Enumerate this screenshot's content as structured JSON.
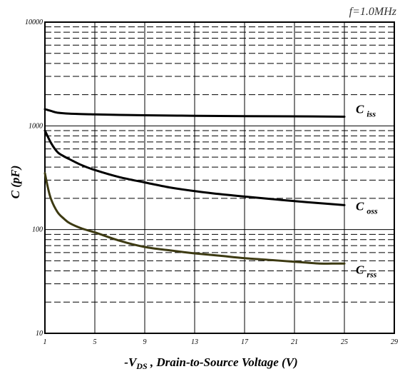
{
  "chart_data": {
    "type": "line",
    "title": "",
    "annotation": "f=1.0MHz",
    "xlabel": {
      "prefix": "-V",
      "sub": "DS",
      "suffix": " , Drain-to-Source Voltage (V)"
    },
    "ylabel": "C (pF)",
    "xlim": [
      1,
      29
    ],
    "ylim": [
      10,
      10000
    ],
    "yscale": "log",
    "xticks": [
      1,
      5,
      9,
      13,
      17,
      21,
      25,
      29
    ],
    "xtick_labels": [
      "1",
      "5",
      "9",
      "13",
      "17",
      "21",
      "25",
      "29"
    ],
    "yticks": [
      10,
      100,
      1000,
      10000
    ],
    "ytick_labels": [
      "10",
      "100",
      "1000",
      "10000"
    ],
    "grid": true,
    "series": [
      {
        "name": "C",
        "sub": "iss",
        "color": "#000000",
        "x": [
          1,
          1.5,
          2,
          3,
          5,
          7,
          9,
          13,
          17,
          21,
          25
        ],
        "y": [
          1450,
          1390,
          1340,
          1310,
          1290,
          1275,
          1265,
          1250,
          1240,
          1235,
          1225
        ]
      },
      {
        "name": "C",
        "sub": "oss",
        "color": "#000000",
        "x": [
          1,
          1.5,
          2,
          2.5,
          3,
          4,
          5,
          7,
          9,
          11,
          13,
          15,
          17,
          19,
          21,
          23,
          25
        ],
        "y": [
          900,
          680,
          560,
          510,
          475,
          415,
          375,
          320,
          285,
          255,
          235,
          220,
          208,
          198,
          188,
          180,
          172
        ]
      },
      {
        "name": "C",
        "sub": "rss",
        "color": "#3d3a12",
        "x": [
          1,
          1.25,
          1.5,
          2,
          2.5,
          3,
          4,
          5,
          7,
          9,
          11,
          13,
          15,
          17,
          19,
          21,
          22,
          23,
          24,
          25
        ],
        "y": [
          350,
          250,
          195,
          148,
          128,
          115,
          102,
          94,
          78,
          68,
          63,
          59,
          56,
          53,
          51,
          49,
          48,
          47,
          47,
          47
        ]
      }
    ]
  }
}
